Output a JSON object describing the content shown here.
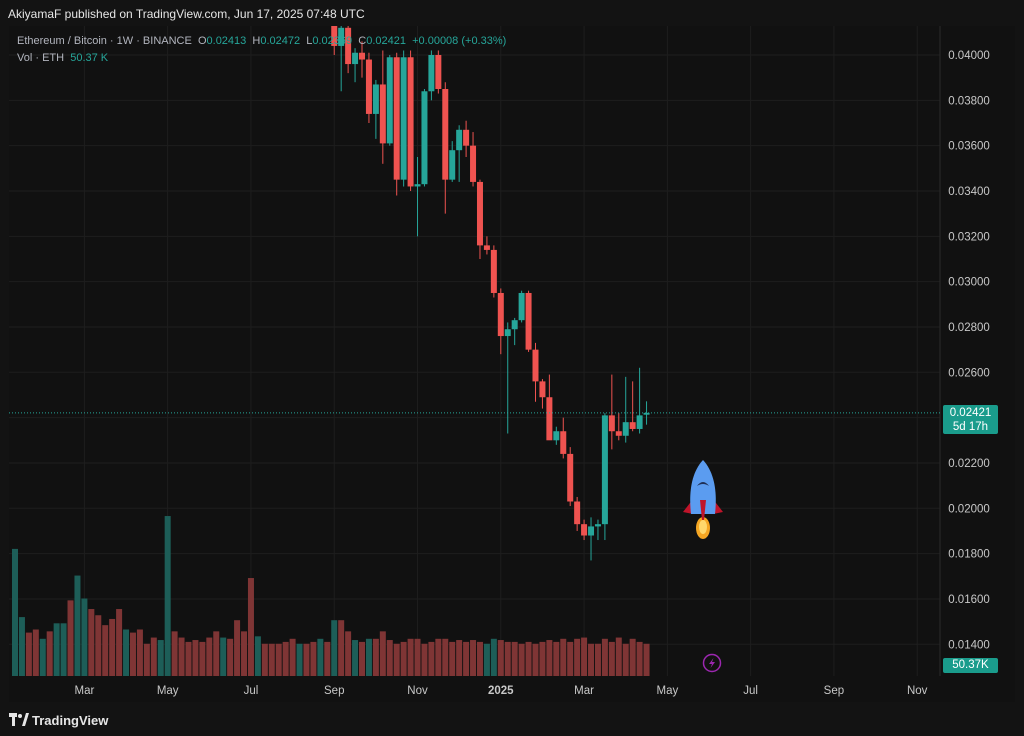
{
  "header": {
    "published_text": "AkiyamaF published on TradingView.com, Jun 17, 2025 07:48 UTC"
  },
  "legend": {
    "symbol": "Ethereum / Bitcoin · 1W · BINANCE",
    "o_label": "O",
    "o_value": "0.02413",
    "h_label": "H",
    "h_value": "0.02472",
    "l_label": "L",
    "l_value": "0.02369",
    "c_label": "C",
    "c_value": "0.02421",
    "change": "+0.00008 (+0.33%)",
    "vol_label": "Vol · ETH",
    "vol_value": "50.37 K"
  },
  "price_tag": {
    "price": "0.02421",
    "countdown": "5d 17h"
  },
  "volume_tag": "50.37K",
  "footer": {
    "brand": "TradingView"
  },
  "colors": {
    "up": "#26a69a",
    "down": "#ef5350",
    "vol_up": "#1d5e58",
    "vol_down": "#7f3535",
    "background": "#111111"
  },
  "icons": [
    "rocket-icon",
    "lightning-icon",
    "tradingview-logo-icon"
  ],
  "chart_data": {
    "type": "candlestick",
    "title": "Ethereum / Bitcoin · 1W · BINANCE",
    "y_ticks": [
      "0.04000",
      "0.03800",
      "0.03600",
      "0.03400",
      "0.03200",
      "0.03000",
      "0.02800",
      "0.02600",
      "0.02400",
      "0.02200",
      "0.02000",
      "0.01800",
      "0.01600",
      "0.01400"
    ],
    "ylim": [
      0.0132,
      0.0413
    ],
    "x_ticks": [
      {
        "label": "Mar",
        "week": 10
      },
      {
        "label": "May",
        "week": 22
      },
      {
        "label": "Jul",
        "week": 34
      },
      {
        "label": "Sep",
        "week": 46
      },
      {
        "label": "Nov",
        "week": 58
      },
      {
        "label": "2025",
        "week": 70
      },
      {
        "label": "Mar",
        "week": 82
      },
      {
        "label": "May",
        "week": 94
      },
      {
        "label": "Jul",
        "week": 106
      },
      {
        "label": "Sep",
        "week": 118
      },
      {
        "label": "Nov",
        "week": 130
      }
    ],
    "last_price": 0.02421,
    "grid": true,
    "candles": [
      {
        "week": 46,
        "o": 0.0431,
        "h": 0.0435,
        "l": 0.04,
        "c": 0.0404
      },
      {
        "week": 47,
        "o": 0.0404,
        "h": 0.042,
        "l": 0.0384,
        "c": 0.0412
      },
      {
        "week": 48,
        "o": 0.0412,
        "h": 0.0416,
        "l": 0.0392,
        "c": 0.0396
      },
      {
        "week": 49,
        "o": 0.0396,
        "h": 0.0403,
        "l": 0.0388,
        "c": 0.0401
      },
      {
        "week": 50,
        "o": 0.0401,
        "h": 0.0406,
        "l": 0.039,
        "c": 0.0398
      },
      {
        "week": 51,
        "o": 0.0398,
        "h": 0.0401,
        "l": 0.037,
        "c": 0.0374
      },
      {
        "week": 52,
        "o": 0.0374,
        "h": 0.0389,
        "l": 0.0363,
        "c": 0.0387
      },
      {
        "week": 53,
        "o": 0.0387,
        "h": 0.0402,
        "l": 0.0352,
        "c": 0.0361
      },
      {
        "week": 54,
        "o": 0.0361,
        "h": 0.04,
        "l": 0.036,
        "c": 0.0399
      },
      {
        "week": 55,
        "o": 0.0399,
        "h": 0.0401,
        "l": 0.0338,
        "c": 0.0345
      },
      {
        "week": 56,
        "o": 0.0345,
        "h": 0.0402,
        "l": 0.0342,
        "c": 0.0399
      },
      {
        "week": 57,
        "o": 0.0399,
        "h": 0.0402,
        "l": 0.034,
        "c": 0.0342
      },
      {
        "week": 58,
        "o": 0.0342,
        "h": 0.0355,
        "l": 0.032,
        "c": 0.0343
      },
      {
        "week": 59,
        "o": 0.0343,
        "h": 0.0385,
        "l": 0.0342,
        "c": 0.0384
      },
      {
        "week": 60,
        "o": 0.0384,
        "h": 0.0402,
        "l": 0.038,
        "c": 0.04
      },
      {
        "week": 61,
        "o": 0.04,
        "h": 0.0402,
        "l": 0.0383,
        "c": 0.0385
      },
      {
        "week": 62,
        "o": 0.0385,
        "h": 0.0388,
        "l": 0.033,
        "c": 0.0345
      },
      {
        "week": 63,
        "o": 0.0345,
        "h": 0.0362,
        "l": 0.0344,
        "c": 0.0358
      },
      {
        "week": 64,
        "o": 0.0358,
        "h": 0.0369,
        "l": 0.0344,
        "c": 0.0367
      },
      {
        "week": 65,
        "o": 0.0367,
        "h": 0.0371,
        "l": 0.0355,
        "c": 0.036
      },
      {
        "week": 66,
        "o": 0.036,
        "h": 0.0366,
        "l": 0.0342,
        "c": 0.0344
      },
      {
        "week": 67,
        "o": 0.0344,
        "h": 0.0345,
        "l": 0.031,
        "c": 0.0316
      },
      {
        "week": 68,
        "o": 0.0316,
        "h": 0.032,
        "l": 0.0312,
        "c": 0.0314
      },
      {
        "week": 69,
        "o": 0.0314,
        "h": 0.0316,
        "l": 0.0293,
        "c": 0.0295
      },
      {
        "week": 70,
        "o": 0.0295,
        "h": 0.0297,
        "l": 0.0268,
        "c": 0.0276
      },
      {
        "week": 71,
        "o": 0.0276,
        "h": 0.0282,
        "l": 0.0233,
        "c": 0.0279
      },
      {
        "week": 72,
        "o": 0.0279,
        "h": 0.0284,
        "l": 0.0272,
        "c": 0.0283
      },
      {
        "week": 73,
        "o": 0.0283,
        "h": 0.0296,
        "l": 0.0282,
        "c": 0.0295
      },
      {
        "week": 74,
        "o": 0.0295,
        "h": 0.0296,
        "l": 0.0269,
        "c": 0.027
      },
      {
        "week": 75,
        "o": 0.027,
        "h": 0.0273,
        "l": 0.0247,
        "c": 0.0256
      },
      {
        "week": 76,
        "o": 0.0256,
        "h": 0.0257,
        "l": 0.0244,
        "c": 0.0249
      },
      {
        "week": 77,
        "o": 0.0249,
        "h": 0.0259,
        "l": 0.0231,
        "c": 0.023
      },
      {
        "week": 78,
        "o": 0.023,
        "h": 0.0236,
        "l": 0.0228,
        "c": 0.0234
      },
      {
        "week": 79,
        "o": 0.0234,
        "h": 0.024,
        "l": 0.0222,
        "c": 0.0224
      },
      {
        "week": 80,
        "o": 0.0224,
        "h": 0.0227,
        "l": 0.0201,
        "c": 0.0203
      },
      {
        "week": 81,
        "o": 0.0203,
        "h": 0.0205,
        "l": 0.019,
        "c": 0.0193
      },
      {
        "week": 82,
        "o": 0.0193,
        "h": 0.0195,
        "l": 0.0186,
        "c": 0.0188
      },
      {
        "week": 83,
        "o": 0.0188,
        "h": 0.0196,
        "l": 0.0177,
        "c": 0.0192
      },
      {
        "week": 84,
        "o": 0.0192,
        "h": 0.0195,
        "l": 0.0186,
        "c": 0.0193
      },
      {
        "week": 85,
        "o": 0.0193,
        "h": 0.0242,
        "l": 0.0186,
        "c": 0.0241
      },
      {
        "week": 86,
        "o": 0.0241,
        "h": 0.0259,
        "l": 0.0226,
        "c": 0.0234
      },
      {
        "week": 87,
        "o": 0.0234,
        "h": 0.0242,
        "l": 0.023,
        "c": 0.0232
      },
      {
        "week": 88,
        "o": 0.0232,
        "h": 0.0258,
        "l": 0.0229,
        "c": 0.0238
      },
      {
        "week": 89,
        "o": 0.0238,
        "h": 0.0256,
        "l": 0.0234,
        "c": 0.0235
      },
      {
        "week": 90,
        "o": 0.0235,
        "h": 0.0262,
        "l": 0.0233,
        "c": 0.0241
      },
      {
        "week": 91,
        "o": 0.02413,
        "h": 0.02472,
        "l": 0.02369,
        "c": 0.02421
      }
    ],
    "volume": {
      "ylim": [
        0,
        300
      ],
      "bars": [
        {
          "week": 0,
          "v": 205,
          "up": true
        },
        {
          "week": 1,
          "v": 95,
          "up": true
        },
        {
          "week": 2,
          "v": 70,
          "up": false
        },
        {
          "week": 3,
          "v": 75,
          "up": false
        },
        {
          "week": 4,
          "v": 60,
          "up": true
        },
        {
          "week": 5,
          "v": 72,
          "up": false
        },
        {
          "week": 6,
          "v": 85,
          "up": true
        },
        {
          "week": 7,
          "v": 85,
          "up": true
        },
        {
          "week": 8,
          "v": 122,
          "up": false
        },
        {
          "week": 9,
          "v": 162,
          "up": true
        },
        {
          "week": 10,
          "v": 125,
          "up": true
        },
        {
          "week": 11,
          "v": 108,
          "up": false
        },
        {
          "week": 12,
          "v": 98,
          "up": false
        },
        {
          "week": 13,
          "v": 82,
          "up": false
        },
        {
          "week": 14,
          "v": 92,
          "up": false
        },
        {
          "week": 15,
          "v": 108,
          "up": false
        },
        {
          "week": 16,
          "v": 75,
          "up": true
        },
        {
          "week": 17,
          "v": 70,
          "up": false
        },
        {
          "week": 18,
          "v": 75,
          "up": false
        },
        {
          "week": 19,
          "v": 52,
          "up": false
        },
        {
          "week": 20,
          "v": 62,
          "up": false
        },
        {
          "week": 21,
          "v": 58,
          "up": true
        },
        {
          "week": 22,
          "v": 258,
          "up": true
        },
        {
          "week": 23,
          "v": 72,
          "up": false
        },
        {
          "week": 24,
          "v": 62,
          "up": false
        },
        {
          "week": 25,
          "v": 55,
          "up": false
        },
        {
          "week": 26,
          "v": 58,
          "up": false
        },
        {
          "week": 27,
          "v": 55,
          "up": false
        },
        {
          "week": 28,
          "v": 62,
          "up": false
        },
        {
          "week": 29,
          "v": 72,
          "up": false
        },
        {
          "week": 30,
          "v": 62,
          "up": true
        },
        {
          "week": 31,
          "v": 60,
          "up": false
        },
        {
          "week": 32,
          "v": 90,
          "up": false
        },
        {
          "week": 33,
          "v": 72,
          "up": false
        },
        {
          "week": 34,
          "v": 158,
          "up": false
        },
        {
          "week": 35,
          "v": 64,
          "up": true
        },
        {
          "week": 36,
          "v": 52,
          "up": false
        },
        {
          "week": 37,
          "v": 52,
          "up": false
        },
        {
          "week": 38,
          "v": 52,
          "up": false
        },
        {
          "week": 39,
          "v": 55,
          "up": false
        },
        {
          "week": 40,
          "v": 60,
          "up": false
        },
        {
          "week": 41,
          "v": 52,
          "up": true
        },
        {
          "week": 42,
          "v": 52,
          "up": false
        },
        {
          "week": 43,
          "v": 55,
          "up": false
        },
        {
          "week": 44,
          "v": 60,
          "up": true
        },
        {
          "week": 45,
          "v": 55,
          "up": false
        },
        {
          "week": 46,
          "v": 90,
          "up": true
        },
        {
          "week": 47,
          "v": 90,
          "up": false
        },
        {
          "week": 48,
          "v": 72,
          "up": false
        },
        {
          "week": 49,
          "v": 58,
          "up": true
        },
        {
          "week": 50,
          "v": 55,
          "up": false
        },
        {
          "week": 51,
          "v": 60,
          "up": true
        },
        {
          "week": 52,
          "v": 60,
          "up": false
        },
        {
          "week": 53,
          "v": 72,
          "up": false
        },
        {
          "week": 54,
          "v": 58,
          "up": false
        },
        {
          "week": 55,
          "v": 52,
          "up": false
        },
        {
          "week": 56,
          "v": 55,
          "up": false
        },
        {
          "week": 57,
          "v": 60,
          "up": false
        },
        {
          "week": 58,
          "v": 60,
          "up": false
        },
        {
          "week": 59,
          "v": 52,
          "up": false
        },
        {
          "week": 60,
          "v": 55,
          "up": false
        },
        {
          "week": 61,
          "v": 60,
          "up": false
        },
        {
          "week": 62,
          "v": 60,
          "up": false
        },
        {
          "week": 63,
          "v": 55,
          "up": false
        },
        {
          "week": 64,
          "v": 58,
          "up": false
        },
        {
          "week": 65,
          "v": 55,
          "up": false
        },
        {
          "week": 66,
          "v": 58,
          "up": false
        },
        {
          "week": 67,
          "v": 55,
          "up": false
        },
        {
          "week": 68,
          "v": 52,
          "up": true
        },
        {
          "week": 69,
          "v": 60,
          "up": true
        },
        {
          "week": 70,
          "v": 58,
          "up": false
        },
        {
          "week": 71,
          "v": 55,
          "up": false
        },
        {
          "week": 72,
          "v": 55,
          "up": false
        },
        {
          "week": 73,
          "v": 52,
          "up": false
        },
        {
          "week": 74,
          "v": 55,
          "up": false
        },
        {
          "week": 75,
          "v": 52,
          "up": false
        },
        {
          "week": 76,
          "v": 55,
          "up": false
        },
        {
          "week": 77,
          "v": 58,
          "up": false
        },
        {
          "week": 78,
          "v": 55,
          "up": false
        },
        {
          "week": 79,
          "v": 60,
          "up": false
        },
        {
          "week": 80,
          "v": 55,
          "up": false
        },
        {
          "week": 81,
          "v": 60,
          "up": false
        },
        {
          "week": 82,
          "v": 62,
          "up": false
        },
        {
          "week": 83,
          "v": 52,
          "up": false
        },
        {
          "week": 84,
          "v": 52,
          "up": false
        },
        {
          "week": 85,
          "v": 60,
          "up": false
        },
        {
          "week": 86,
          "v": 55,
          "up": false
        },
        {
          "week": 87,
          "v": 62,
          "up": false
        },
        {
          "week": 88,
          "v": 52,
          "up": false
        },
        {
          "week": 89,
          "v": 60,
          "up": false
        },
        {
          "week": 90,
          "v": 55,
          "up": false
        },
        {
          "week": 91,
          "v": 52,
          "up": false
        }
      ]
    }
  }
}
